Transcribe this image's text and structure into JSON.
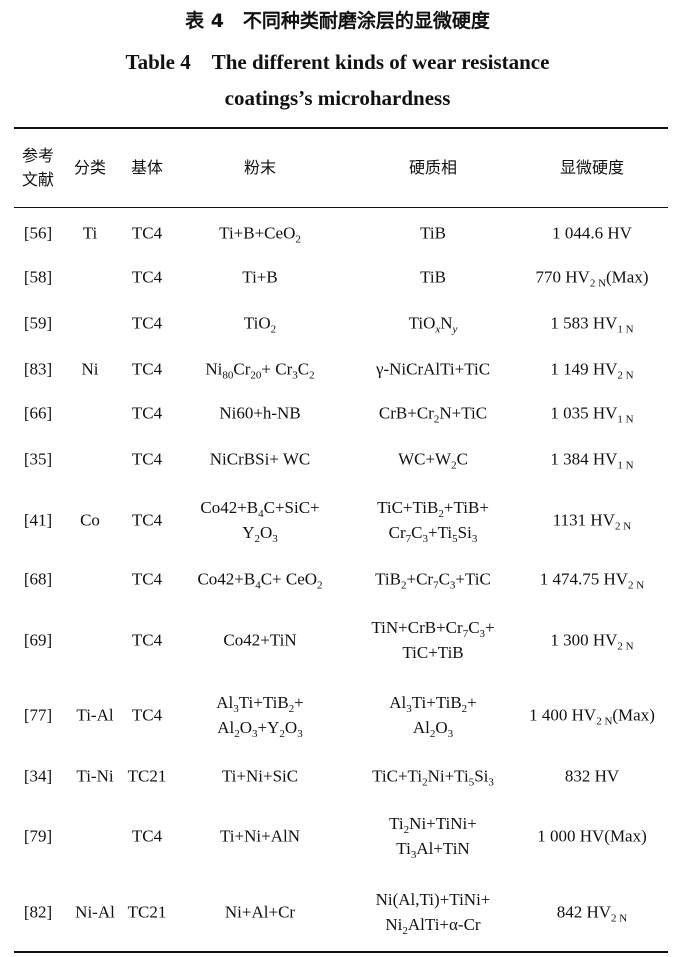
{
  "caption": {
    "cn": "表 4　不同种类耐磨涂层的显微硬度",
    "en_line1": "Table 4　The different kinds of wear resistance",
    "en_line2": "coatings’s microhardness"
  },
  "table": {
    "headers": {
      "ref": [
        "参考",
        "文献"
      ],
      "class": [
        "分类"
      ],
      "base": [
        "基体"
      ],
      "powder": [
        "粉末"
      ],
      "hard": [
        "硬质相"
      ],
      "micro": [
        "显微硬度"
      ]
    },
    "rows": [
      {
        "ref": "[56]",
        "class": "Ti",
        "base": "TC4",
        "powder": [
          "Ti+B+CeO_{2}"
        ],
        "hard": [
          "TiB"
        ],
        "micro": "1 044.6 HV"
      },
      {
        "ref": "[58]",
        "class": "",
        "base": "TC4",
        "powder": [
          "Ti+B"
        ],
        "hard": [
          "TiB"
        ],
        "micro": "770 HV_{2 N}(Max)"
      },
      {
        "ref": "[59]",
        "class": "",
        "base": "TC4",
        "powder": [
          "TiO_{2}"
        ],
        "hard": [
          "TiO_{x}N_{y}"
        ],
        "micro": "1 583 HV_{1 N}"
      },
      {
        "ref": "[83]",
        "class": "Ni",
        "base": "TC4",
        "powder": [
          "Ni_{80}Cr_{20}+ Cr_{3}C_{2}"
        ],
        "hard": [
          "γ-NiCrAlTi+TiC"
        ],
        "micro": "1 149 HV_{2 N}"
      },
      {
        "ref": "[66]",
        "class": "",
        "base": "TC4",
        "powder": [
          "Ni60+h-NB"
        ],
        "hard": [
          "CrB+Cr_{2}N+TiC"
        ],
        "micro": "1 035 HV_{1 N}"
      },
      {
        "ref": "[35]",
        "class": "",
        "base": "TC4",
        "powder": [
          "NiCrBSi+ WC"
        ],
        "hard": [
          "WC+W_{2}C"
        ],
        "micro": "1 384 HV_{1 N}"
      },
      {
        "ref": "[41]",
        "class": "Co",
        "base": "TC4",
        "powder": [
          "Co42+B_{4}C+SiC+",
          "Y_{2}O_{3}"
        ],
        "hard": [
          "TiC+TiB_{2}+TiB+",
          "Cr_{7}C_{3}+Ti_{5}Si_{3}"
        ],
        "micro": "1131 HV_{2 N}"
      },
      {
        "ref": "[68]",
        "class": "",
        "base": "TC4",
        "powder": [
          "Co42+B_{4}C+ CeO_{2}"
        ],
        "hard": [
          "TiB_{2}+Cr_{7}C_{3}+TiC"
        ],
        "micro": "1 474.75 HV_{2 N}"
      },
      {
        "ref": "[69]",
        "class": "",
        "base": "TC4",
        "powder": [
          "Co42+TiN"
        ],
        "hard": [
          "TiN+CrB+Cr_{7}C_{3}+",
          "TiC+TiB"
        ],
        "micro": "1 300 HV_{2 N}"
      },
      {
        "ref": "[77]",
        "class": "Ti-Al",
        "base": "TC4",
        "powder": [
          "Al_{3}Ti+TiB_{2}+",
          "Al_{2}O_{3}+Y_{2}O_{3}"
        ],
        "hard": [
          "Al_{3}Ti+TiB_{2}+",
          "Al_{2}O_{3}"
        ],
        "micro": "1 400 HV_{2 N}(Max)"
      },
      {
        "ref": "[34]",
        "class": "Ti-Ni",
        "base": "TC21",
        "powder": [
          "Ti+Ni+SiC"
        ],
        "hard": [
          "TiC+Ti_{2}Ni+Ti_{5}Si_{3}"
        ],
        "micro": "832 HV"
      },
      {
        "ref": "[79]",
        "class": "",
        "base": "TC4",
        "powder": [
          "Ti+Ni+AlN"
        ],
        "hard": [
          "Ti_{2}Ni+TiNi+",
          "Ti_{3}Al+TiN"
        ],
        "micro": "1 000 HV(Max)"
      },
      {
        "ref": "[82]",
        "class": "Ni-Al",
        "base": "TC21",
        "powder": [
          "Ni+Al+Cr"
        ],
        "hard": [
          "Ni(Al,Ti)+TiNi+",
          "Ni_{2}AlTi+α-Cr"
        ],
        "micro": "842 HV_{2 N}"
      }
    ]
  }
}
